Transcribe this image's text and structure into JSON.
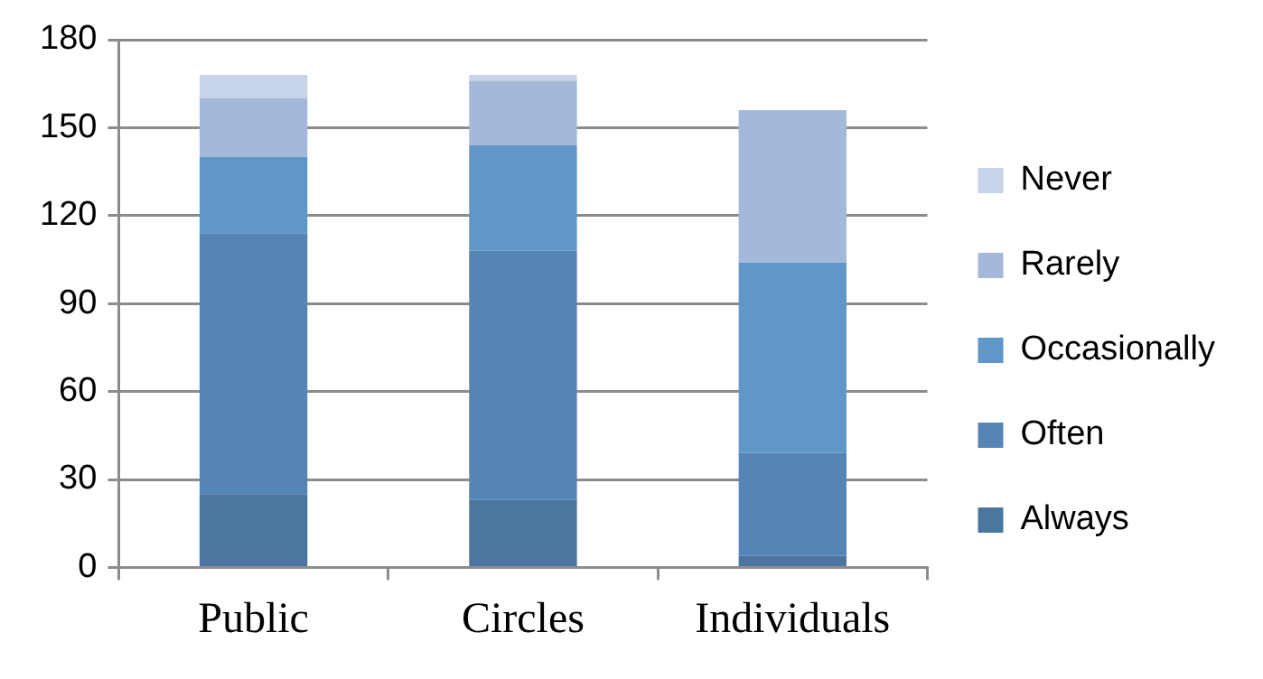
{
  "chart_data": {
    "type": "bar",
    "stacked": true,
    "categories": [
      "Public",
      "Circles",
      "Individuals"
    ],
    "series": [
      {
        "name": "Always",
        "color": "#4a76a0",
        "values": [
          25,
          23,
          4
        ]
      },
      {
        "name": "Often",
        "color": "#5585b5",
        "values": [
          89,
          85,
          35
        ]
      },
      {
        "name": "Occasionally",
        "color": "#6096c8",
        "values": [
          26,
          36,
          65
        ]
      },
      {
        "name": "Rarely",
        "color": "#a4b8da",
        "values": [
          20,
          22,
          52
        ]
      },
      {
        "name": "Never",
        "color": "#c7d3e8",
        "values": [
          8,
          2,
          0
        ]
      }
    ],
    "ylim": [
      0,
      180
    ],
    "yticks": [
      0,
      30,
      60,
      90,
      120,
      150,
      180
    ],
    "grid": "y",
    "legend": "right"
  }
}
